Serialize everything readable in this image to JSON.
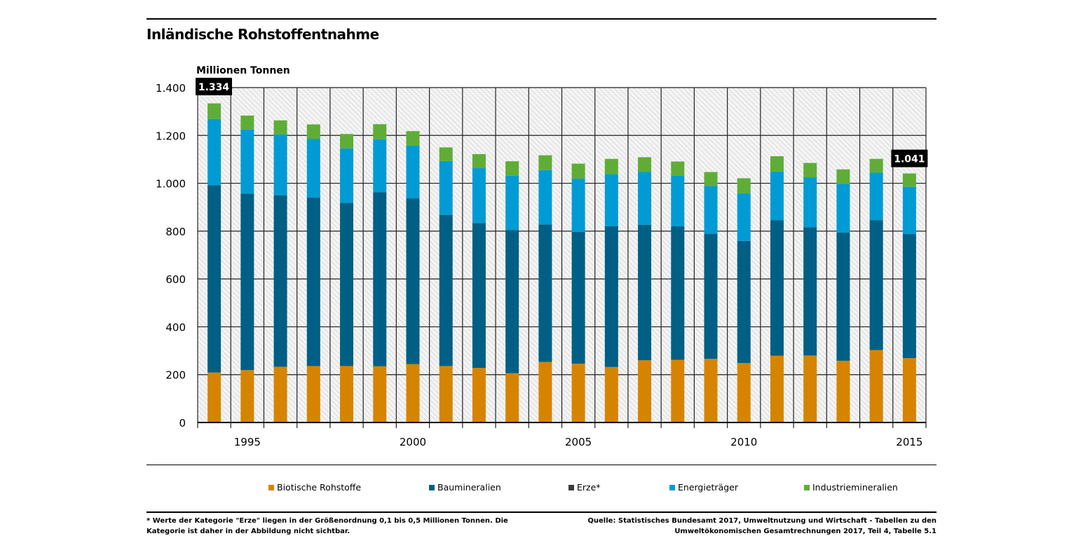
{
  "title": "Inländische Rohstoffentnahme",
  "chart_data": {
    "type": "bar",
    "stacked": true,
    "title": "Inländische Rohstoffentnahme",
    "ylabel": "Millionen Tonnen",
    "xlabel": "",
    "ylim": [
      0,
      1400
    ],
    "yticks": [
      0,
      200,
      400,
      600,
      800,
      1000,
      1200,
      1400
    ],
    "ytick_labels": [
      "0",
      "200",
      "400",
      "600",
      "800",
      "1.000",
      "1.200",
      "1.400"
    ],
    "xtick_labels": [
      "1995",
      "2000",
      "2005",
      "2010",
      "2015"
    ],
    "grid": true,
    "legend_position": "bottom",
    "categories": [
      1994,
      1995,
      1996,
      1997,
      1998,
      1999,
      2000,
      2001,
      2002,
      2003,
      2004,
      2005,
      2006,
      2007,
      2008,
      2009,
      2010,
      2011,
      2012,
      2013,
      2014,
      2015
    ],
    "series": [
      {
        "name": "Biotische Rohstoffe",
        "color": "#d68400",
        "values": [
          209,
          219,
          233,
          236,
          236,
          235,
          244,
          236,
          228,
          206,
          253,
          246,
          232,
          260,
          262,
          266,
          249,
          279,
          280,
          258,
          303,
          269
        ]
      },
      {
        "name": "Baumineralien",
        "color": "#005f85",
        "values": [
          783,
          738,
          716,
          704,
          682,
          728,
          693,
          632,
          606,
          599,
          575,
          551,
          589,
          566,
          558,
          523,
          510,
          567,
          536,
          536,
          543,
          519
        ]
      },
      {
        "name": "Erze*",
        "color": "#3c3c3c",
        "values": [
          0,
          0,
          0,
          0,
          0,
          0,
          0,
          0,
          0,
          0,
          0,
          0,
          0,
          0,
          0,
          0,
          0,
          0,
          0,
          0,
          0,
          0
        ]
      },
      {
        "name": "Energieträger",
        "color": "#009bd5",
        "values": [
          277,
          267,
          255,
          246,
          228,
          221,
          221,
          225,
          229,
          227,
          227,
          222,
          217,
          221,
          211,
          200,
          199,
          203,
          209,
          203,
          198,
          197
        ]
      },
      {
        "name": "Industriemineralien",
        "color": "#5fad37",
        "values": [
          65,
          59,
          59,
          60,
          60,
          63,
          60,
          57,
          59,
          60,
          62,
          63,
          64,
          62,
          60,
          58,
          63,
          64,
          60,
          61,
          58,
          56
        ]
      }
    ],
    "annotations": [
      {
        "category": 1994,
        "text": "1.334"
      },
      {
        "category": 2015,
        "text": "1.041"
      }
    ]
  },
  "footnote": "* Werte der Kategorie \"Erze\" liegen in der Größenordnung 0,1 bis 0,5 Millionen Tonnen. Die Kategorie ist daher in der Abbildung nicht sichtbar.",
  "source": "Quelle: Statistisches Bundesamt 2017, Umweltnutzung und Wirtschaft - Tabellen zu den Umweltökonomischen Gesamtrechnungen 2017, Teil 4, Tabelle 5.1"
}
